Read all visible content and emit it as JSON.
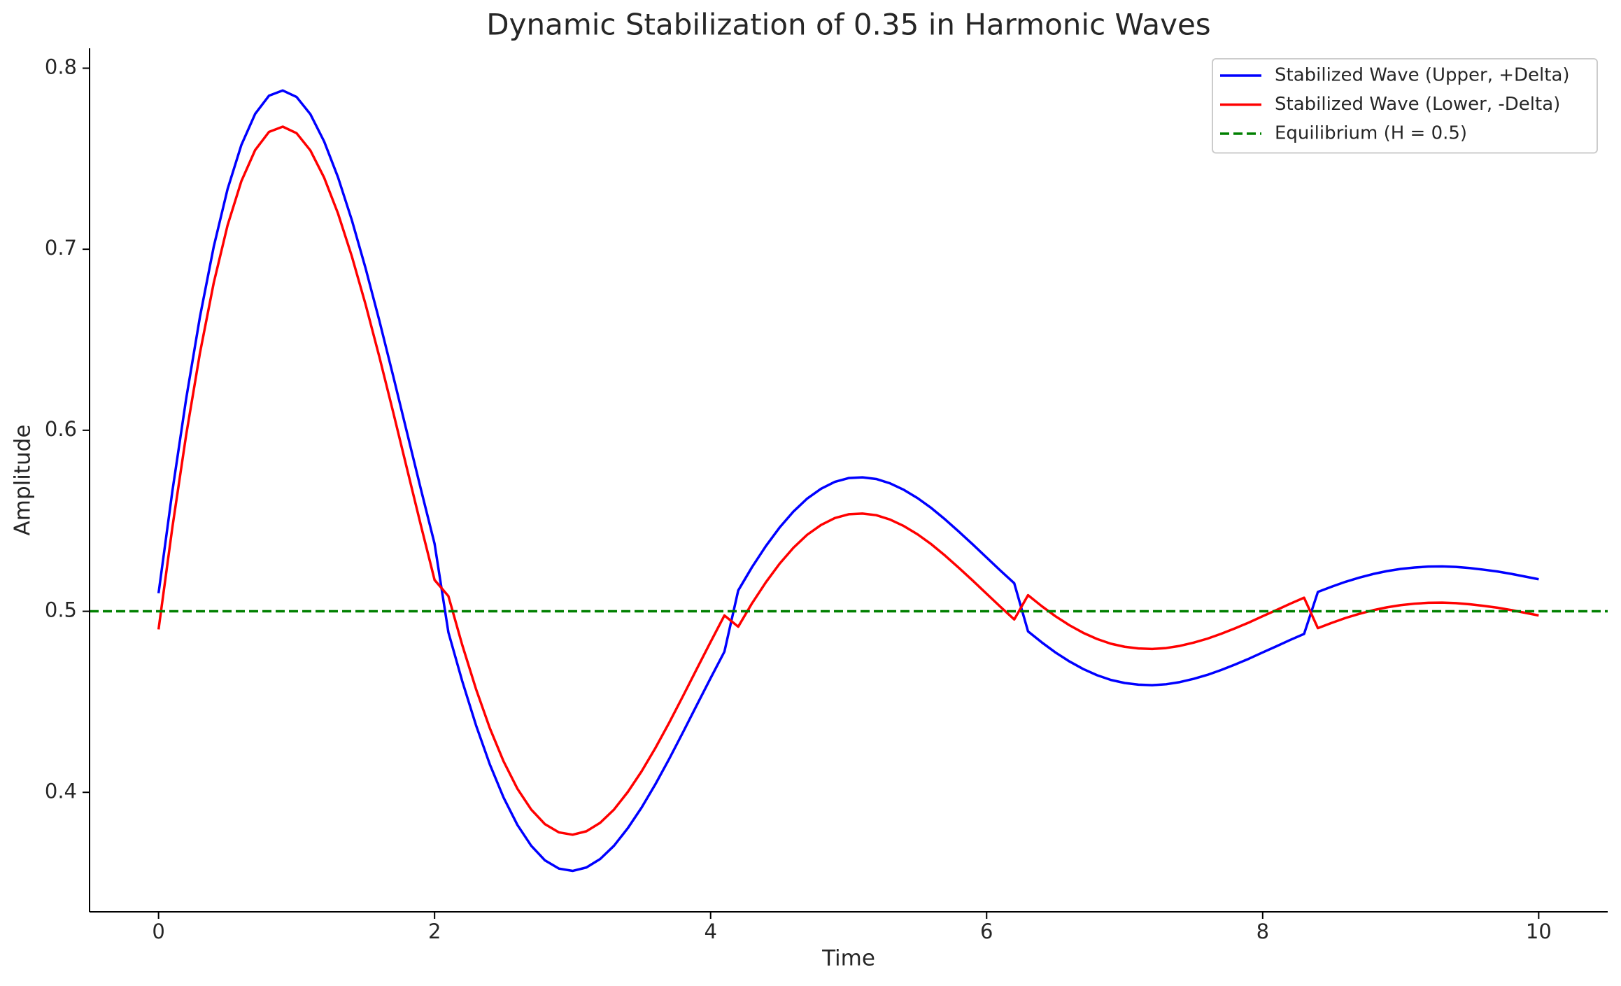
{
  "chart_data": {
    "type": "line",
    "title": "Dynamic Stabilization of 0.35 in Harmonic Waves",
    "xlabel": "Time",
    "ylabel": "Amplitude",
    "x": [
      0,
      0.1,
      0.2,
      0.3,
      0.4,
      0.5,
      0.6,
      0.7,
      0.8,
      0.9,
      1,
      1.1,
      1.2,
      1.3,
      1.4,
      1.5,
      1.6,
      1.7,
      1.8,
      1.9,
      2,
      2.1,
      2.2,
      2.3,
      2.4,
      2.5,
      2.6,
      2.7,
      2.8,
      2.9,
      3,
      3.1,
      3.2,
      3.3,
      3.4,
      3.5,
      3.6,
      3.7,
      3.8,
      3.9,
      4,
      4.1,
      4.2,
      4.3,
      4.4,
      4.5,
      4.6,
      4.7,
      4.8,
      4.9,
      5,
      5.1,
      5.2,
      5.3,
      5.4,
      5.5,
      5.6,
      5.7,
      5.8,
      5.9,
      6,
      6.1,
      6.2,
      6.3,
      6.4,
      6.5,
      6.6,
      6.7,
      6.8,
      6.9,
      7,
      7.1,
      7.2,
      7.3,
      7.4,
      7.5,
      7.6,
      7.7,
      7.8,
      7.9,
      8,
      8.1,
      8.2,
      8.3,
      8.4,
      8.5,
      8.6,
      8.7,
      8.8,
      8.9,
      9,
      9.1,
      9.2,
      9.3,
      9.4,
      9.5,
      9.6,
      9.7,
      9.8,
      9.9,
      10
    ],
    "series": [
      {
        "name": "Stabilized Wave (Upper, +Delta)",
        "color": "#0000ff",
        "values": [
          0.51,
          0.5663,
          0.6174,
          0.6627,
          0.7015,
          0.7332,
          0.7576,
          0.7748,
          0.7848,
          0.7877,
          0.7841,
          0.7746,
          0.7595,
          0.7398,
          0.7162,
          0.6895,
          0.6605,
          0.63,
          0.5988,
          0.5677,
          0.5373,
          0.4884,
          0.4615,
          0.4371,
          0.4155,
          0.3971,
          0.382,
          0.3705,
          0.3624,
          0.3579,
          0.3566,
          0.3585,
          0.3632,
          0.3705,
          0.3802,
          0.3916,
          0.4045,
          0.4185,
          0.4332,
          0.4482,
          0.4631,
          0.4777,
          0.5115,
          0.5244,
          0.536,
          0.5463,
          0.5551,
          0.5623,
          0.5677,
          0.5715,
          0.5736,
          0.574,
          0.5731,
          0.5707,
          0.5671,
          0.5625,
          0.557,
          0.5507,
          0.5439,
          0.5369,
          0.5297,
          0.5225,
          0.5155,
          0.4889,
          0.4828,
          0.4772,
          0.4723,
          0.4681,
          0.4647,
          0.4621,
          0.4604,
          0.4595,
          0.4592,
          0.4597,
          0.4609,
          0.4627,
          0.4649,
          0.4676,
          0.4706,
          0.4738,
          0.4773,
          0.4807,
          0.4842,
          0.4875,
          0.5107,
          0.5136,
          0.5163,
          0.5186,
          0.5206,
          0.5222,
          0.5234,
          0.5242,
          0.5247,
          0.5248,
          0.5245,
          0.5239,
          0.523,
          0.522,
          0.5207,
          0.5192,
          0.5177
        ]
      },
      {
        "name": "Stabilized Wave (Lower, -Delta)",
        "color": "#ff0000",
        "values": [
          0.49,
          0.5463,
          0.5974,
          0.6427,
          0.6815,
          0.7132,
          0.7376,
          0.7548,
          0.7648,
          0.7677,
          0.7641,
          0.7546,
          0.7395,
          0.7198,
          0.6962,
          0.6695,
          0.6405,
          0.61,
          0.5788,
          0.5477,
          0.5173,
          0.5084,
          0.4815,
          0.4571,
          0.4355,
          0.4171,
          0.402,
          0.3905,
          0.3824,
          0.3779,
          0.3766,
          0.3785,
          0.3832,
          0.3905,
          0.4002,
          0.4116,
          0.4245,
          0.4385,
          0.4532,
          0.4682,
          0.4831,
          0.4977,
          0.4915,
          0.5044,
          0.516,
          0.5263,
          0.5351,
          0.5423,
          0.5477,
          0.5515,
          0.5536,
          0.554,
          0.5531,
          0.5507,
          0.5471,
          0.5425,
          0.537,
          0.5307,
          0.5239,
          0.5169,
          0.5097,
          0.5025,
          0.4955,
          0.5089,
          0.5028,
          0.4972,
          0.4923,
          0.4881,
          0.4847,
          0.4821,
          0.4804,
          0.4795,
          0.4792,
          0.4797,
          0.4809,
          0.4827,
          0.4849,
          0.4876,
          0.4906,
          0.4938,
          0.4973,
          0.5007,
          0.5042,
          0.5075,
          0.4907,
          0.4936,
          0.4963,
          0.4986,
          0.5006,
          0.5022,
          0.5034,
          0.5042,
          0.5047,
          0.5048,
          0.5045,
          0.5039,
          0.503,
          0.502,
          0.5007,
          0.4992,
          0.4977
        ]
      }
    ],
    "hlines": [
      {
        "name": "Equilibrium (H = 0.5)",
        "y": 0.5,
        "color": "#008000",
        "dashed": true
      }
    ],
    "xlim": [
      -0.5,
      10.5
    ],
    "xticks": [
      0,
      2,
      4,
      6,
      8,
      10
    ],
    "ylim": [
      0.334,
      0.811
    ],
    "yticks": [
      0.4,
      0.5,
      0.6,
      0.7,
      0.8
    ],
    "grid": false,
    "legend": "upper right"
  }
}
